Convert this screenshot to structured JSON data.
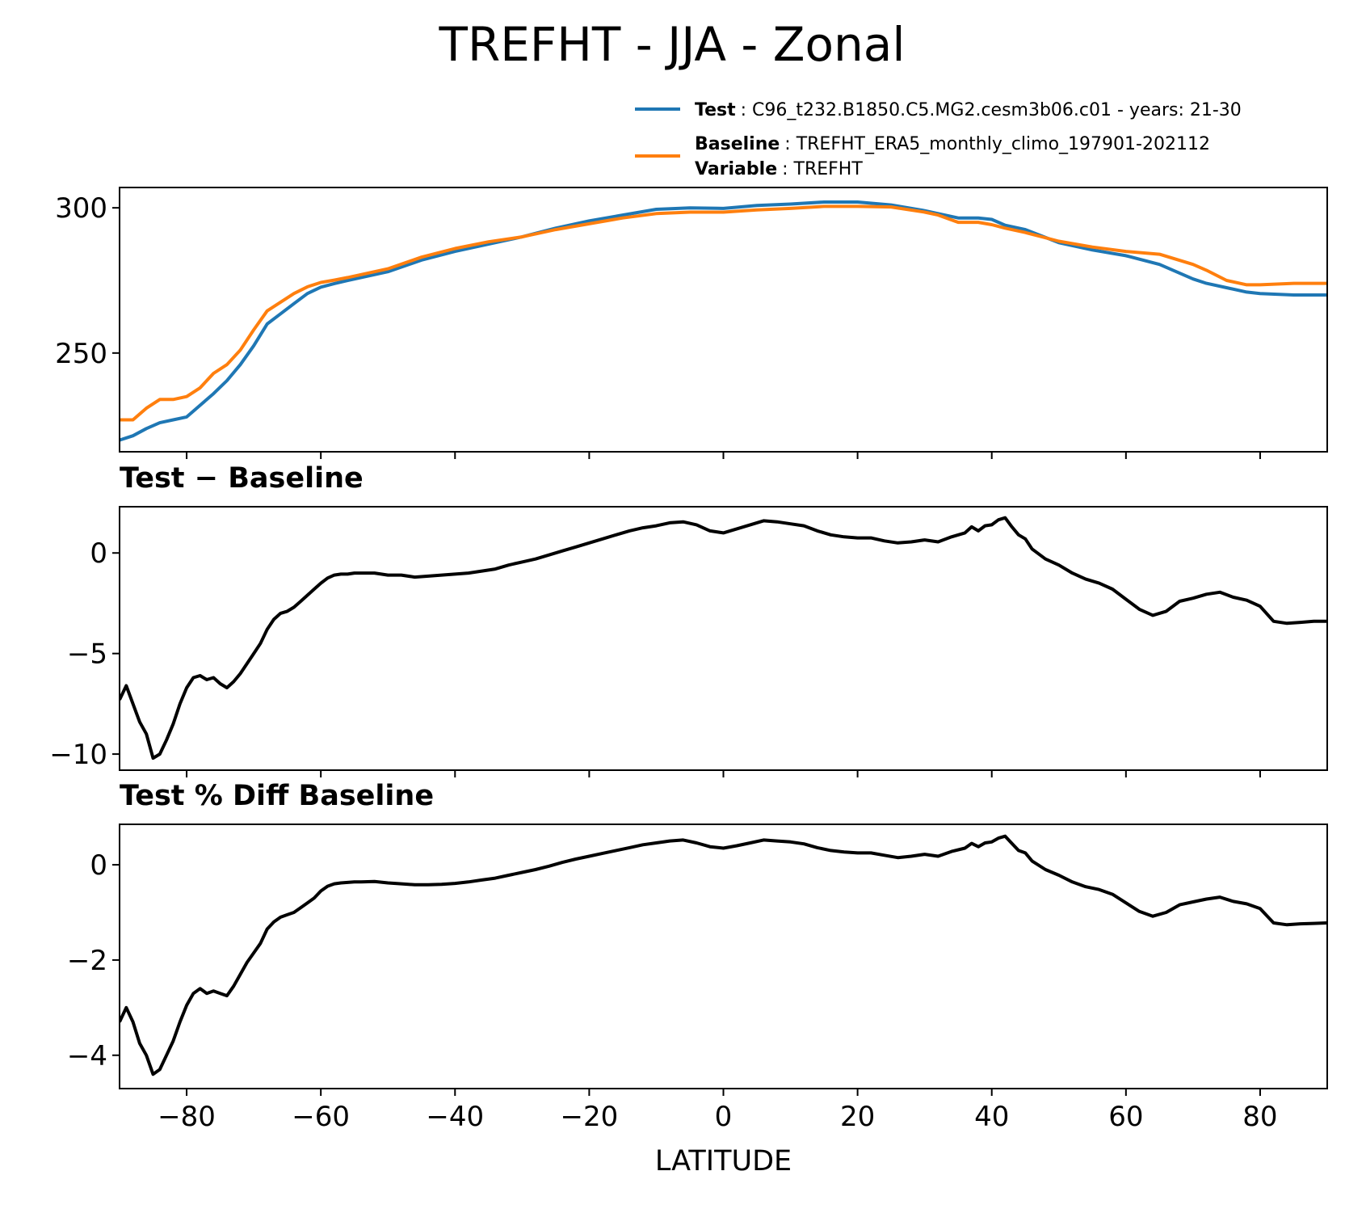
{
  "title": "TREFHT - JJA - Zonal",
  "legend": {
    "test_key": "Test",
    "test_value": ": C96_t232.B1850.C5.MG2.cesm3b06.c01 - years: 21-30",
    "baseline_key": "Baseline",
    "baseline_value": ": TREFHT_ERA5_monthly_climo_197901-202112",
    "variable_key": "Variable",
    "variable_value": ": TREFHT",
    "placement": "top-right, above first panel"
  },
  "colors": {
    "test": "#1f77b4",
    "baseline": "#ff7f0e",
    "diff": "#000000"
  },
  "chart_data": [
    {
      "type": "line",
      "title": "",
      "xlabel": "",
      "ylabel": "",
      "xlim": [
        -90,
        90
      ],
      "ylim": [
        216,
        307
      ],
      "yticks": [
        250,
        300
      ],
      "series": [
        {
          "name": "Test",
          "x": [
            -90,
            -88,
            -86,
            -84,
            -82,
            -80,
            -78,
            -76,
            -74,
            -72,
            -70,
            -68,
            -66,
            -64,
            -62,
            -60,
            -58,
            -56,
            -54,
            -52,
            -50,
            -45,
            -40,
            -35,
            -30,
            -25,
            -20,
            -15,
            -10,
            -5,
            0,
            5,
            10,
            15,
            20,
            25,
            30,
            32,
            35,
            38,
            40,
            42,
            45,
            50,
            55,
            60,
            65,
            70,
            72,
            75,
            78,
            80,
            85,
            90
          ],
          "y": [
            220,
            221.5,
            224,
            226,
            227,
            228,
            232,
            236,
            240.5,
            246,
            252.5,
            260,
            263.5,
            267,
            270.5,
            272.7,
            273.9,
            275,
            276,
            277,
            278,
            282,
            285,
            287.5,
            290,
            293,
            295.5,
            297.5,
            299.5,
            300,
            299.8,
            300.8,
            301.3,
            302,
            302,
            301,
            299,
            298,
            296.5,
            296.5,
            296,
            294,
            292.5,
            288,
            285.5,
            283.5,
            280.5,
            275.5,
            274,
            272.5,
            271,
            270.5,
            270,
            270
          ]
        },
        {
          "name": "Baseline",
          "x": [
            -90,
            -88,
            -86,
            -84,
            -82,
            -80,
            -78,
            -76,
            -74,
            -72,
            -70,
            -68,
            -66,
            -64,
            -62,
            -60,
            -58,
            -56,
            -54,
            -52,
            -50,
            -45,
            -40,
            -35,
            -30,
            -25,
            -20,
            -15,
            -10,
            -5,
            0,
            5,
            10,
            15,
            20,
            25,
            30,
            32,
            35,
            38,
            40,
            42,
            45,
            50,
            55,
            60,
            65,
            70,
            72,
            75,
            78,
            80,
            85,
            90
          ],
          "y": [
            227,
            227,
            231,
            234,
            234,
            235,
            238,
            243,
            246,
            251,
            258,
            264.5,
            267.5,
            270.5,
            272.8,
            274.3,
            275.1,
            276,
            277,
            278,
            279,
            283,
            286,
            288.3,
            290,
            292.5,
            294.5,
            296.5,
            298,
            298.5,
            298.5,
            299.3,
            299.8,
            300.5,
            300.5,
            300.3,
            298.5,
            297.5,
            295,
            295,
            294.2,
            293,
            291.5,
            288.5,
            286.5,
            285,
            284,
            280.5,
            278.5,
            275,
            273.5,
            273.5,
            274,
            274
          ]
        }
      ]
    },
    {
      "type": "line",
      "title": "Test − Baseline",
      "xlabel": "",
      "ylabel": "",
      "xlim": [
        -90,
        90
      ],
      "ylim": [
        -10.8,
        2.3
      ],
      "yticks": [
        -10,
        -5,
        0
      ],
      "series": [
        {
          "x": [
            -90,
            -89,
            -88,
            -87,
            -86,
            -85,
            -84,
            -83,
            -82,
            -81,
            -80,
            -79,
            -78,
            -77,
            -76,
            -75,
            -74,
            -73,
            -72,
            -71,
            -70,
            -69,
            -68,
            -67,
            -66,
            -65,
            -64,
            -63,
            -62,
            -61,
            -60,
            -59,
            -58,
            -57,
            -56,
            -55,
            -54,
            -52,
            -50,
            -48,
            -46,
            -44,
            -42,
            -40,
            -38,
            -36,
            -34,
            -32,
            -30,
            -28,
            -26,
            -24,
            -22,
            -20,
            -18,
            -16,
            -14,
            -12,
            -10,
            -8,
            -6,
            -4,
            -2,
            0,
            2,
            4,
            6,
            8,
            10,
            12,
            14,
            16,
            18,
            20,
            22,
            24,
            26,
            28,
            30,
            32,
            34,
            36,
            37,
            38,
            39,
            40,
            41,
            42,
            43,
            44,
            45,
            46,
            48,
            50,
            52,
            54,
            56,
            58,
            60,
            62,
            64,
            66,
            68,
            70,
            72,
            74,
            76,
            78,
            80,
            82,
            84,
            86,
            88,
            90
          ],
          "y": [
            -7.3,
            -6.6,
            -7.5,
            -8.4,
            -9,
            -10.2,
            -10,
            -9.3,
            -8.5,
            -7.5,
            -6.7,
            -6.2,
            -6.1,
            -6.3,
            -6.2,
            -6.5,
            -6.7,
            -6.4,
            -6,
            -5.5,
            -5,
            -4.5,
            -3.8,
            -3.3,
            -3,
            -2.9,
            -2.7,
            -2.4,
            -2.1,
            -1.8,
            -1.5,
            -1.25,
            -1.1,
            -1.05,
            -1.05,
            -1,
            -1,
            -1,
            -1.1,
            -1.1,
            -1.2,
            -1.15,
            -1.1,
            -1.05,
            -1.0,
            -0.9,
            -0.8,
            -0.6,
            -0.45,
            -0.3,
            -0.1,
            0.1,
            0.3,
            0.5,
            0.7,
            0.9,
            1.1,
            1.25,
            1.35,
            1.5,
            1.55,
            1.4,
            1.1,
            1.0,
            1.2,
            1.4,
            1.6,
            1.55,
            1.45,
            1.35,
            1.1,
            0.9,
            0.8,
            0.75,
            0.75,
            0.6,
            0.5,
            0.55,
            0.65,
            0.55,
            0.8,
            1.0,
            1.3,
            1.1,
            1.35,
            1.4,
            1.65,
            1.75,
            1.3,
            0.9,
            0.7,
            0.2,
            -0.3,
            -0.6,
            -1.0,
            -1.3,
            -1.5,
            -1.8,
            -2.3,
            -2.8,
            -3.1,
            -2.9,
            -2.4,
            -2.25,
            -2.05,
            -1.95,
            -2.2,
            -2.35,
            -2.65,
            -3.4,
            -3.5,
            -3.45,
            -3.4,
            -3.4
          ]
        }
      ]
    },
    {
      "type": "line",
      "title": "Test % Diff Baseline",
      "xlabel": "LATITUDE",
      "ylabel": "",
      "xlim": [
        -90,
        90
      ],
      "ylim": [
        -4.7,
        0.85
      ],
      "yticks": [
        -4,
        -2,
        0
      ],
      "xticks": [
        -80,
        -60,
        -40,
        -20,
        0,
        20,
        40,
        60,
        80
      ],
      "series": [
        {
          "x": [
            -90,
            -89,
            -88,
            -87,
            -86,
            -85,
            -84,
            -83,
            -82,
            -81,
            -80,
            -79,
            -78,
            -77,
            -76,
            -75,
            -74,
            -73,
            -72,
            -71,
            -70,
            -69,
            -68,
            -67,
            -66,
            -65,
            -64,
            -63,
            -62,
            -61,
            -60,
            -59,
            -58,
            -57,
            -56,
            -55,
            -54,
            -52,
            -50,
            -48,
            -46,
            -44,
            -42,
            -40,
            -38,
            -36,
            -34,
            -32,
            -30,
            -28,
            -26,
            -24,
            -22,
            -20,
            -18,
            -16,
            -14,
            -12,
            -10,
            -8,
            -6,
            -4,
            -2,
            0,
            2,
            4,
            6,
            8,
            10,
            12,
            14,
            16,
            18,
            20,
            22,
            24,
            26,
            28,
            30,
            32,
            34,
            36,
            37,
            38,
            39,
            40,
            41,
            42,
            43,
            44,
            45,
            46,
            48,
            50,
            52,
            54,
            56,
            58,
            60,
            62,
            64,
            66,
            68,
            70,
            72,
            74,
            76,
            78,
            80,
            82,
            84,
            86,
            88,
            90
          ],
          "y": [
            -3.3,
            -3.0,
            -3.3,
            -3.75,
            -4.0,
            -4.4,
            -4.3,
            -4.0,
            -3.7,
            -3.3,
            -2.95,
            -2.7,
            -2.6,
            -2.7,
            -2.65,
            -2.7,
            -2.75,
            -2.55,
            -2.3,
            -2.05,
            -1.85,
            -1.65,
            -1.35,
            -1.2,
            -1.1,
            -1.05,
            -1.0,
            -0.9,
            -0.8,
            -0.7,
            -0.55,
            -0.45,
            -0.4,
            -0.38,
            -0.37,
            -0.36,
            -0.36,
            -0.35,
            -0.38,
            -0.4,
            -0.42,
            -0.42,
            -0.41,
            -0.39,
            -0.36,
            -0.32,
            -0.28,
            -0.22,
            -0.16,
            -0.1,
            -0.03,
            0.05,
            0.12,
            0.18,
            0.24,
            0.3,
            0.36,
            0.42,
            0.46,
            0.5,
            0.52,
            0.46,
            0.38,
            0.35,
            0.4,
            0.46,
            0.52,
            0.5,
            0.48,
            0.44,
            0.36,
            0.3,
            0.27,
            0.25,
            0.25,
            0.2,
            0.15,
            0.18,
            0.22,
            0.18,
            0.28,
            0.35,
            0.45,
            0.38,
            0.46,
            0.48,
            0.56,
            0.6,
            0.45,
            0.3,
            0.25,
            0.08,
            -0.1,
            -0.22,
            -0.36,
            -0.46,
            -0.52,
            -0.62,
            -0.8,
            -0.98,
            -1.08,
            -1.0,
            -0.84,
            -0.78,
            -0.72,
            -0.68,
            -0.77,
            -0.82,
            -0.92,
            -1.22,
            -1.26,
            -1.24,
            -1.23,
            -1.22
          ]
        }
      ]
    }
  ]
}
